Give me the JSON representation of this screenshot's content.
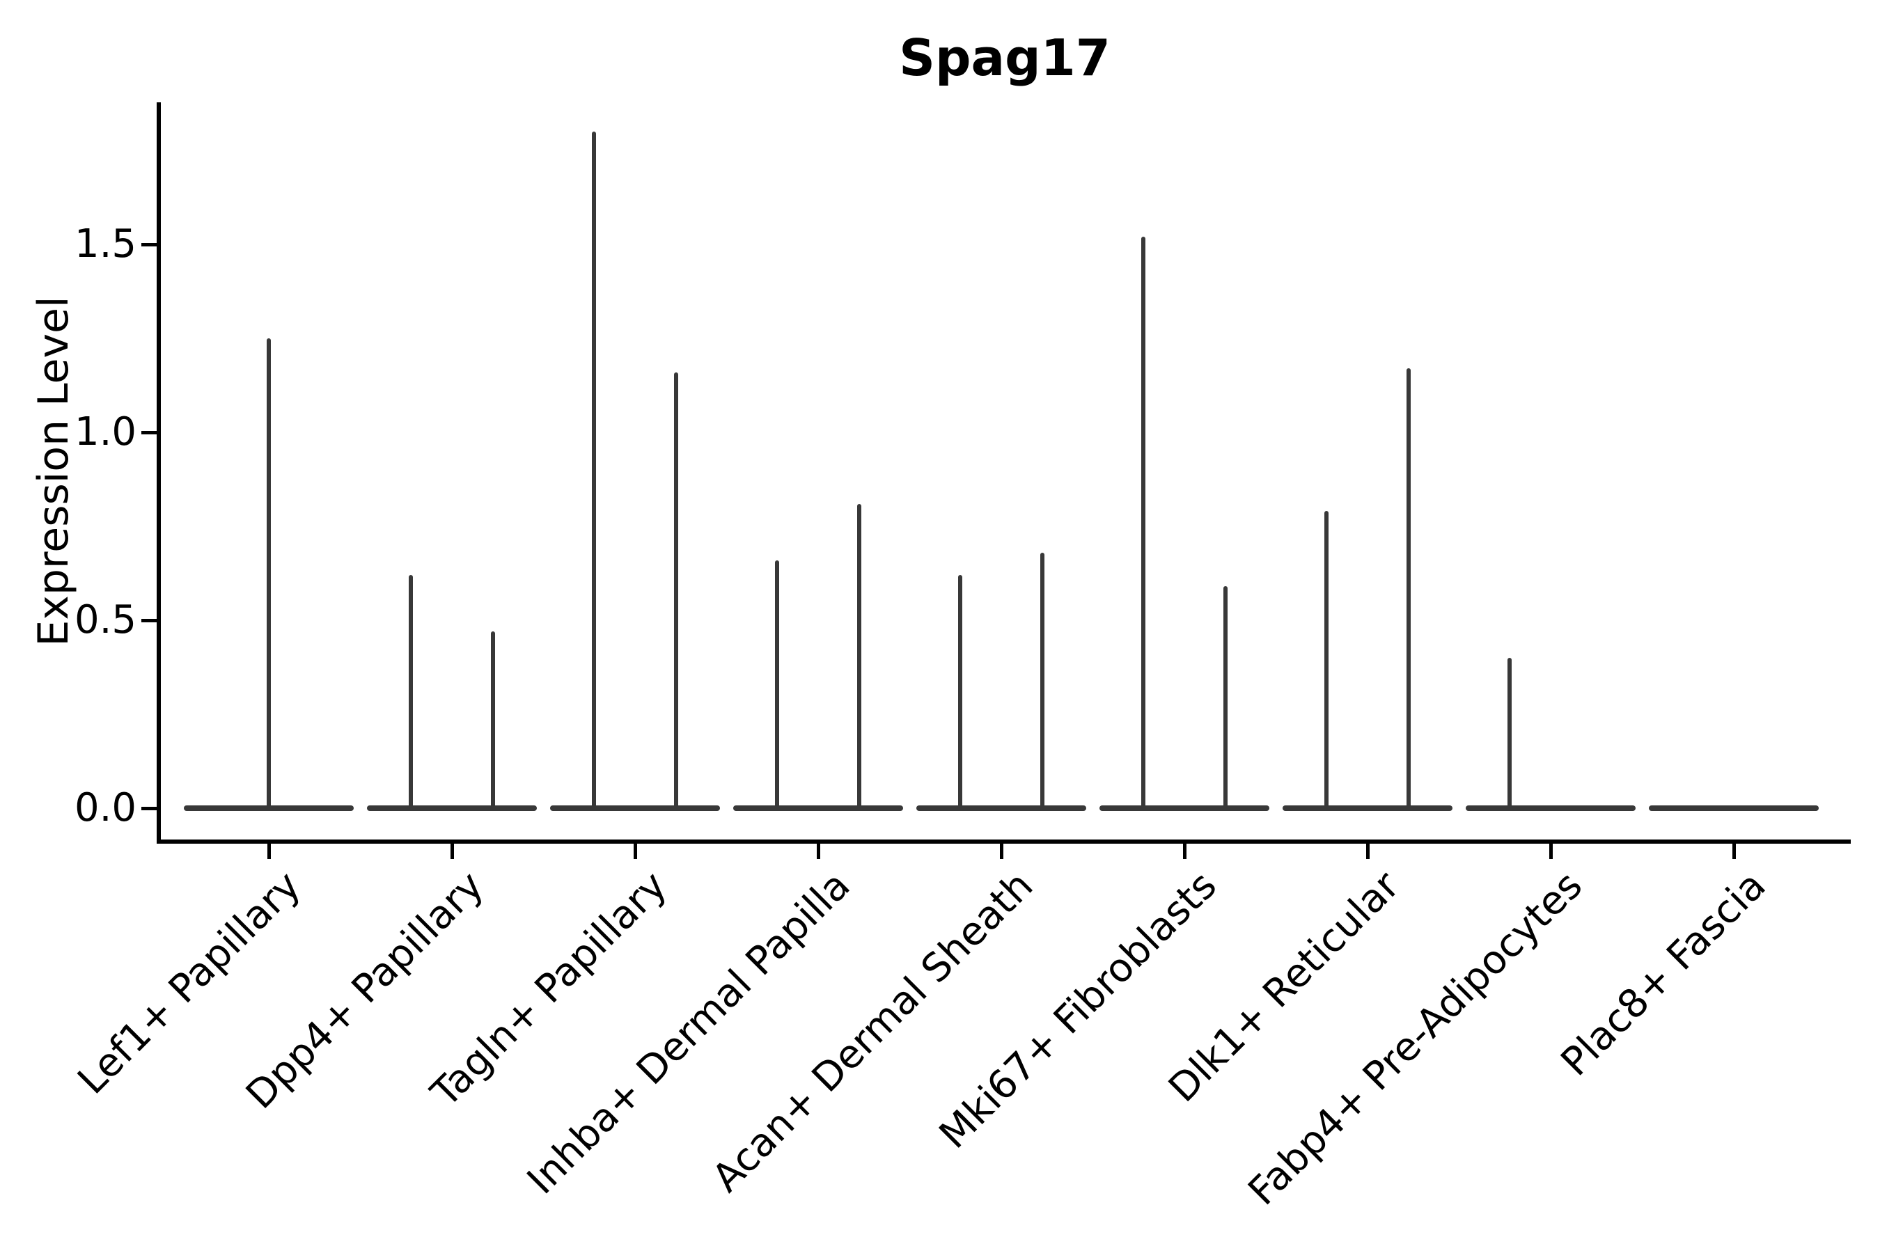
{
  "chart_data": {
    "type": "violin",
    "title": "Spag17",
    "ylabel": "Expression Level",
    "xlabel": "",
    "grid": false,
    "legend": null,
    "ylim": [
      -0.09,
      1.88
    ],
    "y_ticks": [
      0,
      0.5,
      1.0,
      1.5
    ],
    "y_tick_labels": [
      "0.0",
      "0.5",
      "1.0",
      "1.5"
    ],
    "categories": [
      "Lef1+ Papillary",
      "Dpp4+ Papillary",
      "Tagln+ Papillary",
      "Inhba+ Dermal Papilla",
      "Acan+ Dermal Sheath",
      "Mki67+ Fibroblasts",
      "Dlk1+ Reticular",
      "Fabp4+ Pre-Adipocytes",
      "Plac8+ Fascia"
    ],
    "violins": [
      {
        "category": "Lef1+ Papillary",
        "spikes": [
          {
            "offset": 0.0,
            "max": 1.25
          }
        ]
      },
      {
        "category": "Dpp4+ Papillary",
        "spikes": [
          {
            "offset": -0.225,
            "max": 0.62
          },
          {
            "offset": 0.225,
            "max": 0.47
          }
        ]
      },
      {
        "category": "Tagln+ Papillary",
        "spikes": [
          {
            "offset": -0.225,
            "max": 1.8
          },
          {
            "offset": 0.225,
            "max": 1.16
          }
        ]
      },
      {
        "category": "Inhba+ Dermal Papilla",
        "spikes": [
          {
            "offset": -0.225,
            "max": 0.66
          },
          {
            "offset": 0.225,
            "max": 0.81
          }
        ]
      },
      {
        "category": "Acan+ Dermal Sheath",
        "spikes": [
          {
            "offset": -0.225,
            "max": 0.62
          },
          {
            "offset": 0.225,
            "max": 0.68
          }
        ]
      },
      {
        "category": "Mki67+ Fibroblasts",
        "spikes": [
          {
            "offset": -0.225,
            "max": 1.52
          },
          {
            "offset": 0.225,
            "max": 0.59
          }
        ]
      },
      {
        "category": "Dlk1+ Reticular",
        "spikes": [
          {
            "offset": -0.225,
            "max": 0.79
          },
          {
            "offset": 0.225,
            "max": 1.17
          }
        ]
      },
      {
        "category": "Fabp4+ Pre-Adipocytes",
        "spikes": [
          {
            "offset": -0.225,
            "max": 0.4
          }
        ]
      },
      {
        "category": "Plac8+ Fascia",
        "spikes": []
      }
    ],
    "colors": {
      "violin": "#383838",
      "axis": "#000000",
      "text": "#000000",
      "background": "#ffffff"
    }
  }
}
